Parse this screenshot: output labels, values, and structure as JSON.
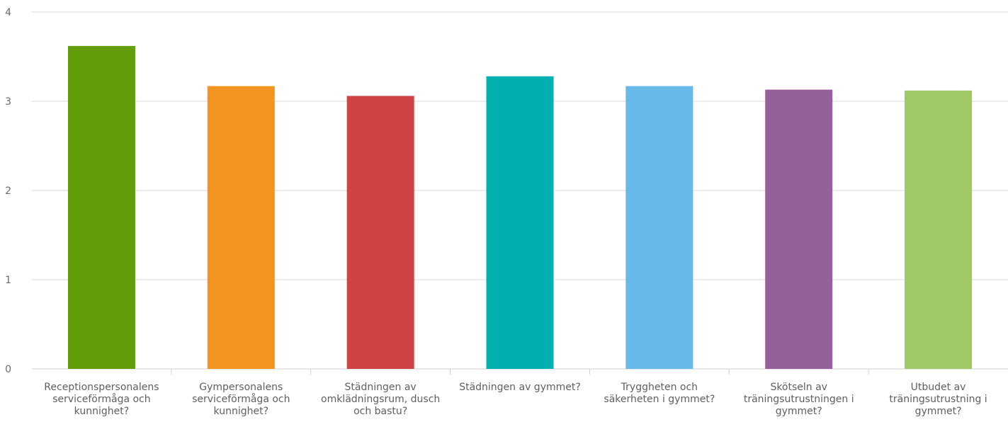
{
  "chart_data": {
    "type": "bar",
    "title": "",
    "xlabel": "",
    "ylabel": "",
    "ylim": [
      0,
      4
    ],
    "yticks": [
      0,
      1,
      2,
      3,
      4
    ],
    "grid": true,
    "categories": [
      "Receptionspersonalens serviceförmåga och kunnighet?",
      "Gympersonalens serviceförmåga och kunnighet?",
      "Städningen av omklädningsrum, dusch och bastu?",
      "Städningen av gymmet?",
      "Tryggheten och säkerheten i gymmet?",
      "Skötseln av träningsutrustningen i gymmet?",
      "Utbudet av träningsutrustning i gymmet?"
    ],
    "category_lines": [
      [
        "Receptionspersonalens",
        "serviceförmåga och",
        "kunnighet?"
      ],
      [
        "Gympersonalens",
        "serviceförmåga och",
        "kunnighet?"
      ],
      [
        "Städningen av",
        "omklädningsrum, dusch",
        "och bastu?"
      ],
      [
        "Städningen av gymmet?"
      ],
      [
        "Tryggheten och",
        "säkerheten i gymmet?"
      ],
      [
        "Skötseln av",
        "träningsutrustningen i",
        "gymmet?"
      ],
      [
        "Utbudet av",
        "träningsutrustning i",
        "gymmet?"
      ]
    ],
    "values": [
      3.62,
      3.17,
      3.06,
      3.28,
      3.17,
      3.13,
      3.12
    ],
    "colors": [
      "#639d0b",
      "#f39320",
      "#d04343",
      "#00afaf",
      "#67b9ea",
      "#955f9a",
      "#a0c864"
    ]
  }
}
